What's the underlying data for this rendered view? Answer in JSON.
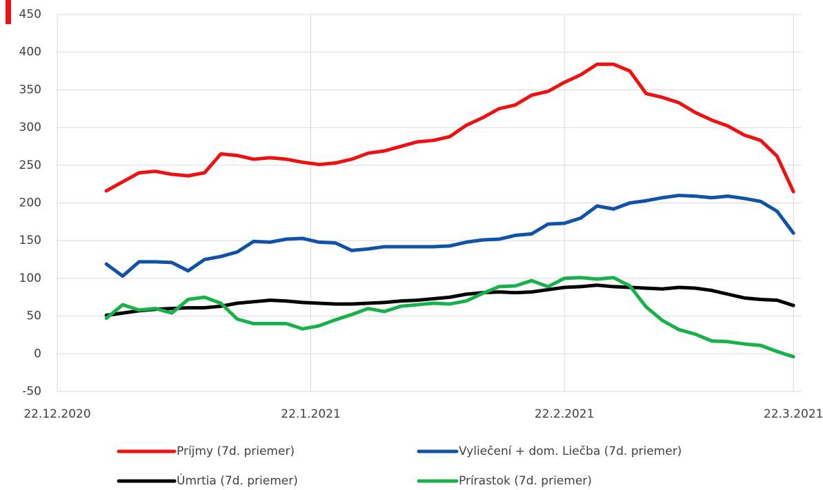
{
  "chart_data": {
    "type": "line",
    "x": [
      "2020-12-28",
      "2020-12-30",
      "2021-01-01",
      "2021-01-03",
      "2021-01-05",
      "2021-01-07",
      "2021-01-09",
      "2021-01-11",
      "2021-01-13",
      "2021-01-15",
      "2021-01-17",
      "2021-01-19",
      "2021-01-21",
      "2021-01-23",
      "2021-01-25",
      "2021-01-27",
      "2021-01-29",
      "2021-01-31",
      "2021-02-02",
      "2021-02-04",
      "2021-02-06",
      "2021-02-08",
      "2021-02-10",
      "2021-02-12",
      "2021-02-14",
      "2021-02-16",
      "2021-02-18",
      "2021-02-20",
      "2021-02-22",
      "2021-02-24",
      "2021-02-26",
      "2021-02-28",
      "2021-03-02",
      "2021-03-04",
      "2021-03-06",
      "2021-03-08",
      "2021-03-10",
      "2021-03-12",
      "2021-03-14",
      "2021-03-16",
      "2021-03-18",
      "2021-03-20",
      "2021-03-22"
    ],
    "series": [
      {
        "name": "Príjmy (7d. priemer)",
        "color": "#ee1111",
        "values": [
          216,
          228,
          240,
          242,
          238,
          236,
          240,
          265,
          263,
          258,
          260,
          258,
          254,
          251,
          253,
          258,
          266,
          269,
          275,
          281,
          283,
          288,
          303,
          313,
          325,
          330,
          343,
          348,
          360,
          370,
          384,
          384,
          375,
          345,
          340,
          333,
          320,
          310,
          302,
          290,
          283,
          262,
          215
        ]
      },
      {
        "name": "Vyliečení + dom. Liečba (7d. priemer)",
        "color": "#0f52a8",
        "values": [
          119,
          103,
          122,
          122,
          121,
          110,
          125,
          129,
          135,
          149,
          148,
          152,
          153,
          148,
          147,
          137,
          139,
          142,
          142,
          142,
          142,
          143,
          148,
          151,
          152,
          157,
          159,
          172,
          173,
          180,
          196,
          192,
          200,
          203,
          207,
          210,
          209,
          207,
          209,
          206,
          202,
          189,
          160
        ]
      },
      {
        "name": "Úmrtia (7d. priemer)",
        "color": "#000000",
        "values": [
          51,
          54,
          57,
          59,
          60,
          61,
          61,
          63,
          67,
          69,
          71,
          70,
          68,
          67,
          66,
          66,
          67,
          68,
          70,
          71,
          73,
          75,
          79,
          81,
          82,
          81,
          82,
          85,
          88,
          89,
          91,
          89,
          88,
          87,
          86,
          88,
          87,
          84,
          79,
          74,
          72,
          71,
          64
        ]
      },
      {
        "name": "Prírastok (7d. priemer)",
        "color": "#17b14a",
        "values": [
          47,
          65,
          58,
          60,
          54,
          72,
          75,
          67,
          46,
          40,
          40,
          40,
          33,
          37,
          45,
          52,
          60,
          56,
          63,
          65,
          67,
          66,
          70,
          80,
          89,
          90,
          97,
          89,
          100,
          101,
          99,
          101,
          90,
          62,
          44,
          32,
          26,
          17,
          16,
          13,
          11,
          3,
          -4
        ]
      }
    ],
    "xlim": [
      "2020-12-22",
      "2021-03-23"
    ],
    "xticks": [
      {
        "value": "2020-12-22",
        "label": "22.12.2020"
      },
      {
        "value": "2021-01-22",
        "label": "22.1.2021"
      },
      {
        "value": "2021-02-22",
        "label": "22.2.2021"
      },
      {
        "value": "2021-03-22",
        "label": "22.3.2021"
      }
    ],
    "ylim": [
      -50,
      450
    ],
    "yticks": [
      -50,
      0,
      50,
      100,
      150,
      200,
      250,
      300,
      350,
      400,
      450
    ],
    "grid": true,
    "legend": "bottom"
  }
}
